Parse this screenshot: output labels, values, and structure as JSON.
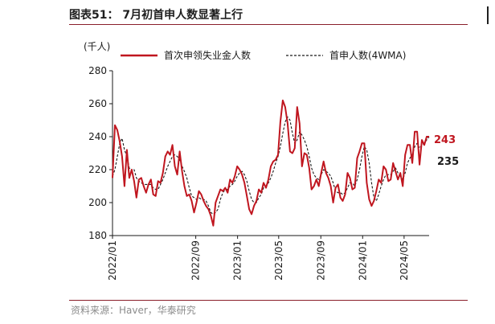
{
  "header": {
    "title": "图表51： 7月初首申人数显著上行"
  },
  "footer": {
    "source": "资料来源：Haver，华泰研究"
  },
  "chart_data": {
    "type": "line",
    "unit_label": "(千人)",
    "ylim": [
      180,
      280
    ],
    "yticks": [
      180,
      200,
      220,
      240,
      260,
      280
    ],
    "xlim": [
      "2022-01-01",
      "2024-07-13"
    ],
    "xticks": [
      "2022/01",
      "2022/09",
      "2023/01",
      "2023/05",
      "2023/09",
      "2024/01",
      "2024/05"
    ],
    "xtick_dates": [
      "2022-01-01",
      "2022-09-01",
      "2023-01-01",
      "2023-05-01",
      "2023-09-01",
      "2024-01-01",
      "2024-05-01"
    ],
    "grid": false,
    "legend_position": "top",
    "colors": {
      "initial_claims": "#c0161f",
      "wma": "#1a1a1a"
    },
    "annotations": [
      {
        "text": "243",
        "series": "首次申领失业金人数",
        "color": "#c0161f"
      },
      {
        "text": "235",
        "series": "首申人数(4WMA)",
        "color": "#1a1a1a"
      }
    ],
    "series": [
      {
        "name": "首次申领失业金人数",
        "style": "solid",
        "x": [
          "2022-01-01",
          "2022-01-08",
          "2022-01-15",
          "2022-01-22",
          "2022-01-29",
          "2022-02-05",
          "2022-02-12",
          "2022-02-19",
          "2022-02-26",
          "2022-03-05",
          "2022-03-12",
          "2022-03-19",
          "2022-03-26",
          "2022-04-02",
          "2022-04-09",
          "2022-04-16",
          "2022-04-23",
          "2022-04-30",
          "2022-05-07",
          "2022-05-14",
          "2022-05-21",
          "2022-05-28",
          "2022-06-04",
          "2022-06-11",
          "2022-06-18",
          "2022-06-25",
          "2022-07-02",
          "2022-07-09",
          "2022-07-16",
          "2022-07-23",
          "2022-07-30",
          "2022-08-06",
          "2022-08-13",
          "2022-08-20",
          "2022-08-27",
          "2022-09-03",
          "2022-09-10",
          "2022-09-17",
          "2022-09-24",
          "2022-10-01",
          "2022-10-08",
          "2022-10-15",
          "2022-10-22",
          "2022-10-29",
          "2022-11-05",
          "2022-11-12",
          "2022-11-19",
          "2022-11-26",
          "2022-12-03",
          "2022-12-10",
          "2022-12-17",
          "2022-12-24",
          "2022-12-31",
          "2023-01-07",
          "2023-01-14",
          "2023-01-21",
          "2023-01-28",
          "2023-02-04",
          "2023-02-11",
          "2023-02-18",
          "2023-02-25",
          "2023-03-04",
          "2023-03-11",
          "2023-03-18",
          "2023-03-25",
          "2023-04-01",
          "2023-04-08",
          "2023-04-15",
          "2023-04-22",
          "2023-04-29",
          "2023-05-06",
          "2023-05-13",
          "2023-05-20",
          "2023-05-27",
          "2023-06-03",
          "2023-06-10",
          "2023-06-17",
          "2023-06-24",
          "2023-07-01",
          "2023-07-08",
          "2023-07-15",
          "2023-07-22",
          "2023-07-29",
          "2023-08-05",
          "2023-08-12",
          "2023-08-19",
          "2023-08-26",
          "2023-09-02",
          "2023-09-09",
          "2023-09-16",
          "2023-09-23",
          "2023-09-30",
          "2023-10-07",
          "2023-10-14",
          "2023-10-21",
          "2023-10-28",
          "2023-11-04",
          "2023-11-11",
          "2023-11-18",
          "2023-11-25",
          "2023-12-02",
          "2023-12-09",
          "2023-12-16",
          "2023-12-23",
          "2023-12-30",
          "2024-01-06",
          "2024-01-13",
          "2024-01-20",
          "2024-01-27",
          "2024-02-03",
          "2024-02-10",
          "2024-02-17",
          "2024-02-24",
          "2024-03-02",
          "2024-03-09",
          "2024-03-16",
          "2024-03-23",
          "2024-03-30",
          "2024-04-06",
          "2024-04-13",
          "2024-04-20",
          "2024-04-27",
          "2024-05-04",
          "2024-05-11",
          "2024-05-18",
          "2024-05-25",
          "2024-06-01",
          "2024-06-08",
          "2024-06-15",
          "2024-06-22",
          "2024-06-29",
          "2024-07-06",
          "2024-07-13"
        ],
        "y": [
          215,
          247,
          244,
          237,
          228,
          210,
          232,
          215,
          220,
          213,
          203,
          214,
          215,
          210,
          206,
          211,
          214,
          205,
          204,
          213,
          212,
          218,
          228,
          231,
          229,
          235,
          222,
          217,
          231,
          219,
          210,
          204,
          205,
          201,
          194,
          200,
          207,
          205,
          201,
          198,
          196,
          192,
          186,
          200,
          204,
          208,
          207,
          209,
          206,
          214,
          212,
          216,
          222,
          220,
          217,
          212,
          204,
          196,
          193,
          198,
          201,
          208,
          206,
          212,
          209,
          214,
          222,
          225,
          226,
          229,
          249,
          262,
          258,
          248,
          231,
          230,
          233,
          258,
          248,
          222,
          230,
          229,
          221,
          208,
          210,
          214,
          210,
          218,
          225,
          218,
          215,
          210,
          200,
          209,
          211,
          203,
          201,
          205,
          218,
          215,
          208,
          209,
          227,
          231,
          236,
          236,
          212,
          202,
          198,
          201,
          207,
          214,
          212,
          222,
          220,
          213,
          214,
          224,
          219,
          214,
          218,
          210,
          229,
          235,
          235,
          224,
          243,
          243,
          223,
          238,
          235,
          240,
          240
        ]
      },
      {
        "name": "首申人数(4WMA)",
        "style": "dashed",
        "x": [
          "2022-01-01",
          "2022-01-08",
          "2022-01-15",
          "2022-01-22",
          "2022-01-29",
          "2022-02-05",
          "2022-02-12",
          "2022-02-19",
          "2022-02-26",
          "2022-03-05",
          "2022-03-12",
          "2022-03-19",
          "2022-03-26",
          "2022-04-02",
          "2022-04-09",
          "2022-04-16",
          "2022-04-23",
          "2022-04-30",
          "2022-05-07",
          "2022-05-14",
          "2022-05-21",
          "2022-05-28",
          "2022-06-04",
          "2022-06-11",
          "2022-06-18",
          "2022-06-25",
          "2022-07-02",
          "2022-07-09",
          "2022-07-16",
          "2022-07-23",
          "2022-07-30",
          "2022-08-06",
          "2022-08-13",
          "2022-08-20",
          "2022-08-27",
          "2022-09-03",
          "2022-09-10",
          "2022-09-17",
          "2022-09-24",
          "2022-10-01",
          "2022-10-08",
          "2022-10-15",
          "2022-10-22",
          "2022-10-29",
          "2022-11-05",
          "2022-11-12",
          "2022-11-19",
          "2022-11-26",
          "2022-12-03",
          "2022-12-10",
          "2022-12-17",
          "2022-12-24",
          "2022-12-31",
          "2023-01-07",
          "2023-01-14",
          "2023-01-21",
          "2023-01-28",
          "2023-02-04",
          "2023-02-11",
          "2023-02-18",
          "2023-02-25",
          "2023-03-04",
          "2023-03-11",
          "2023-03-18",
          "2023-03-25",
          "2023-04-01",
          "2023-04-08",
          "2023-04-15",
          "2023-04-22",
          "2023-04-29",
          "2023-05-06",
          "2023-05-13",
          "2023-05-20",
          "2023-05-27",
          "2023-06-03",
          "2023-06-10",
          "2023-06-17",
          "2023-06-24",
          "2023-07-01",
          "2023-07-08",
          "2023-07-15",
          "2023-07-22",
          "2023-07-29",
          "2023-08-05",
          "2023-08-12",
          "2023-08-19",
          "2023-08-26",
          "2023-09-02",
          "2023-09-09",
          "2023-09-16",
          "2023-09-23",
          "2023-09-30",
          "2023-10-07",
          "2023-10-14",
          "2023-10-21",
          "2023-10-28",
          "2023-11-04",
          "2023-11-11",
          "2023-11-18",
          "2023-11-25",
          "2023-12-02",
          "2023-12-09",
          "2023-12-16",
          "2023-12-23",
          "2023-12-30",
          "2024-01-06",
          "2024-01-13",
          "2024-01-20",
          "2024-01-27",
          "2024-02-03",
          "2024-02-10",
          "2024-02-17",
          "2024-02-24",
          "2024-03-02",
          "2024-03-09",
          "2024-03-16",
          "2024-03-23",
          "2024-03-30",
          "2024-04-06",
          "2024-04-13",
          "2024-04-20",
          "2024-04-27",
          "2024-05-04",
          "2024-05-11",
          "2024-05-18",
          "2024-05-25",
          "2024-06-01",
          "2024-06-08",
          "2024-06-15",
          "2024-06-22",
          "2024-06-29",
          "2024-07-06",
          "2024-07-13"
        ],
        "y": [
          216,
          220,
          228,
          236,
          239,
          232,
          228,
          221,
          219,
          220,
          215,
          213,
          212,
          211,
          211,
          211,
          211,
          209,
          208,
          208,
          211,
          214,
          218,
          222,
          225,
          228,
          229,
          228,
          226,
          222,
          219,
          215,
          209,
          204,
          203,
          202,
          203,
          202,
          202,
          201,
          198,
          194,
          193,
          194,
          196,
          202,
          206,
          208,
          208,
          210,
          211,
          213,
          216,
          218,
          219,
          217,
          213,
          207,
          202,
          200,
          200,
          203,
          205,
          209,
          210,
          212,
          215,
          219,
          224,
          228,
          234,
          242,
          249,
          252,
          250,
          242,
          236,
          238,
          243,
          241,
          238,
          234,
          228,
          221,
          217,
          215,
          214,
          217,
          220,
          219,
          218,
          216,
          212,
          207,
          206,
          206,
          205,
          206,
          209,
          212,
          212,
          210,
          214,
          220,
          228,
          234,
          232,
          224,
          212,
          203,
          201,
          205,
          210,
          214,
          217,
          217,
          217,
          219,
          221,
          218,
          216,
          214,
          218,
          224,
          227,
          229,
          234,
          236,
          233,
          235,
          236,
          238,
          240
        ]
      }
    ]
  }
}
